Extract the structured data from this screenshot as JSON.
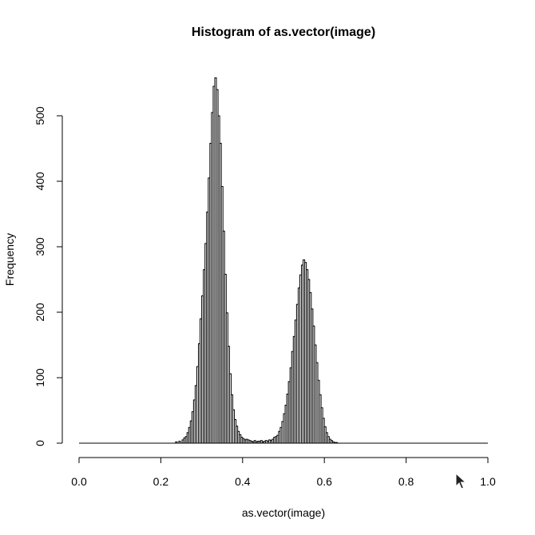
{
  "chart_data": {
    "type": "bar",
    "title": "Histogram of as.vector(image)",
    "xlabel": "as.vector(image)",
    "ylabel": "Frequency",
    "xlim": [
      0,
      1
    ],
    "ylim": [
      0,
      560
    ],
    "x_ticks": [
      {
        "value": 0.0,
        "label": "0.0"
      },
      {
        "value": 0.2,
        "label": "0.2"
      },
      {
        "value": 0.4,
        "label": "0.4"
      },
      {
        "value": 0.6,
        "label": "0.6"
      },
      {
        "value": 0.8,
        "label": "0.8"
      },
      {
        "value": 1.0,
        "label": "1.0"
      }
    ],
    "y_ticks": [
      {
        "value": 0,
        "label": "0"
      },
      {
        "value": 100,
        "label": "100"
      },
      {
        "value": 200,
        "label": "200"
      },
      {
        "value": 300,
        "label": "300"
      },
      {
        "value": 400,
        "label": "400"
      },
      {
        "value": 500,
        "label": "500"
      }
    ],
    "bin_width": 0.004,
    "bin_start": 0.0,
    "counts": [
      0,
      0,
      0,
      0,
      0,
      0,
      0,
      0,
      0,
      0,
      0,
      0,
      0,
      0,
      0,
      0,
      0,
      0,
      0,
      0,
      0,
      0,
      0,
      0,
      0,
      0,
      0,
      0,
      0,
      0,
      0,
      0,
      0,
      0,
      0,
      0,
      0,
      0,
      0,
      0,
      0,
      0,
      0,
      0,
      0,
      0,
      0,
      0,
      0,
      0,
      0,
      0,
      0,
      0,
      0,
      0,
      0,
      0,
      0,
      2,
      0,
      3,
      0,
      5,
      8,
      10,
      16,
      24,
      34,
      48,
      66,
      88,
      117,
      152,
      190,
      225,
      265,
      305,
      353,
      405,
      458,
      505,
      545,
      558,
      540,
      500,
      458,
      392,
      324,
      258,
      199,
      148,
      106,
      74,
      51,
      36,
      26,
      18,
      13,
      9,
      7,
      5,
      6,
      5,
      4,
      3,
      2,
      4,
      2,
      3,
      3,
      4,
      2,
      3,
      4,
      3,
      5,
      4,
      6,
      9,
      10,
      12,
      18,
      24,
      33,
      45,
      58,
      75,
      94,
      115,
      140,
      163,
      188,
      212,
      237,
      257,
      272,
      280,
      276,
      265,
      250,
      230,
      205,
      179,
      150,
      123,
      96,
      74,
      54,
      38,
      25,
      16,
      10,
      6,
      4,
      2,
      1,
      1,
      0,
      0,
      0,
      0,
      0,
      0,
      0,
      0,
      0,
      0,
      0,
      0,
      0,
      0,
      0,
      0,
      0,
      0,
      0,
      0,
      0,
      0,
      0,
      0,
      0,
      0,
      0,
      0,
      0,
      0,
      0,
      0,
      0,
      0,
      0,
      0,
      0,
      0,
      0,
      0,
      0,
      0,
      0,
      0,
      0,
      0,
      0,
      0,
      0,
      0,
      0,
      0,
      0,
      0,
      0,
      0,
      0,
      0,
      0,
      0,
      0,
      0,
      0,
      0,
      0,
      0,
      0,
      0,
      0,
      0,
      0,
      0,
      0,
      0,
      0,
      0,
      0,
      0,
      0,
      0,
      0,
      0,
      0,
      0,
      0,
      0,
      0,
      0,
      0,
      0,
      0,
      0,
      0,
      0,
      0,
      0,
      0,
      0,
      0,
      0,
      0,
      0,
      0,
      0,
      0
    ]
  },
  "cursor": {
    "icon": "arrow-cursor-icon"
  }
}
